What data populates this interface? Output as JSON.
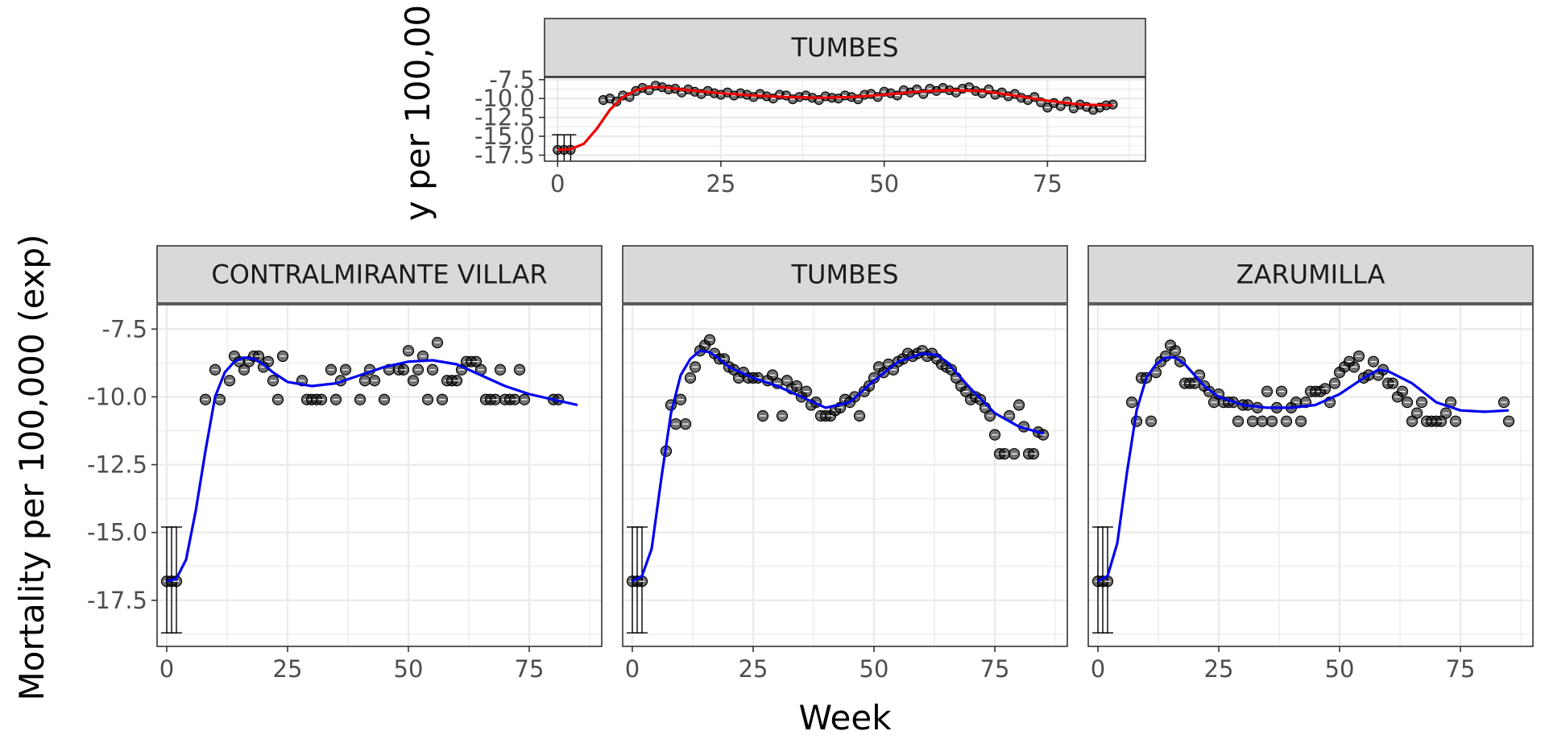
{
  "colors": {
    "bottom_line": "#0000ee",
    "top_line": "#ee0000",
    "points": "#000000",
    "strip_fill": "#d9d9d9"
  },
  "labels": {
    "x_axis_title": "Week",
    "y_axis_title": "Mortality per 100,000 (exp)",
    "top_y_axis_title_fragment": "y per 100,00"
  },
  "chart_data": [
    {
      "type": "scatter",
      "panel": "top",
      "strip": "TUMBES",
      "line_color": "red",
      "xlim": [
        -2,
        90
      ],
      "ylim": [
        -18.3,
        -7.2
      ],
      "x_ticks": [
        0,
        25,
        50,
        75
      ],
      "x_tick_labels": [
        "0",
        "25",
        "50",
        "75"
      ],
      "y_ticks": [
        -7.5,
        -10,
        -12.5,
        -15,
        -17.5
      ],
      "y_tick_labels": [
        "-7.5",
        "-10.0",
        "-12.5",
        "-15.0",
        "-17.5"
      ],
      "points": {
        "x": [
          0,
          1,
          2,
          7,
          8,
          9,
          10,
          11,
          12,
          13,
          14,
          15,
          16,
          17,
          18,
          19,
          20,
          21,
          22,
          23,
          24,
          25,
          26,
          27,
          28,
          29,
          30,
          31,
          32,
          33,
          34,
          35,
          36,
          37,
          38,
          39,
          40,
          41,
          42,
          43,
          44,
          45,
          46,
          47,
          48,
          49,
          50,
          51,
          52,
          53,
          54,
          55,
          56,
          57,
          58,
          59,
          60,
          61,
          62,
          63,
          64,
          65,
          66,
          67,
          68,
          69,
          70,
          71,
          72,
          73,
          74,
          75,
          76,
          77,
          78,
          79,
          80,
          81,
          82,
          83,
          84,
          85
        ],
        "y": [
          -16.8,
          -16.8,
          -16.8,
          -10.2,
          -10.0,
          -10.4,
          -9.6,
          -9.8,
          -9.0,
          -8.6,
          -8.9,
          -8.3,
          -8.5,
          -8.8,
          -8.7,
          -9.2,
          -8.8,
          -9.1,
          -9.4,
          -9.0,
          -9.3,
          -9.5,
          -9.2,
          -9.6,
          -9.3,
          -9.5,
          -9.8,
          -9.4,
          -9.7,
          -10.0,
          -9.5,
          -9.6,
          -10.1,
          -9.8,
          -9.6,
          -9.9,
          -10.2,
          -9.7,
          -9.9,
          -10.0,
          -9.6,
          -9.8,
          -10.1,
          -9.5,
          -9.4,
          -9.8,
          -9.1,
          -9.3,
          -9.6,
          -8.9,
          -9.2,
          -8.8,
          -9.4,
          -8.7,
          -9.0,
          -8.6,
          -8.9,
          -9.2,
          -8.7,
          -8.5,
          -9.0,
          -9.3,
          -8.8,
          -9.5,
          -9.2,
          -9.7,
          -9.4,
          -9.9,
          -10.2,
          -9.8,
          -10.5,
          -11.2,
          -10.6,
          -11.0,
          -10.4,
          -11.3,
          -10.8,
          -11.1,
          -11.5,
          -11.2,
          -10.9,
          -10.8
        ]
      },
      "error_bars": [
        {
          "x": 0,
          "low": -18.7,
          "high": -14.8
        },
        {
          "x": 1,
          "low": -18.7,
          "high": -14.8
        },
        {
          "x": 2,
          "low": -18.7,
          "high": -14.8
        }
      ],
      "smooth": {
        "x": [
          0,
          2,
          4,
          6,
          8,
          10,
          12,
          14,
          16,
          18,
          20,
          25,
          30,
          35,
          40,
          45,
          50,
          55,
          60,
          65,
          70,
          75,
          80,
          85
        ],
        "y": [
          -16.8,
          -16.7,
          -16.0,
          -14.0,
          -11.5,
          -9.8,
          -8.9,
          -8.5,
          -8.5,
          -8.7,
          -8.9,
          -9.3,
          -9.6,
          -9.8,
          -9.9,
          -9.8,
          -9.5,
          -9.1,
          -8.9,
          -9.0,
          -9.6,
          -10.3,
          -10.8,
          -10.9
        ]
      }
    },
    {
      "type": "scatter",
      "panel": "bottom-left",
      "strip": "CONTRALMIRANTE VILLAR",
      "line_color": "blue",
      "xlim": [
        -2,
        90
      ],
      "ylim": [
        -19.2,
        -6.6
      ],
      "x_ticks": [
        0,
        25,
        50,
        75
      ],
      "x_tick_labels": [
        "0",
        "25",
        "50",
        "75"
      ],
      "y_ticks": [
        -7.5,
        -10,
        -12.5,
        -15,
        -17.5
      ],
      "y_tick_labels": [
        "-7.5",
        "-10.0",
        "-12.5",
        "-15.0",
        "-17.5"
      ],
      "points": {
        "x": [
          0,
          1,
          2,
          8,
          10,
          11,
          13,
          14,
          15,
          16,
          17,
          18,
          19,
          20,
          21,
          22,
          23,
          24,
          28,
          29,
          30,
          31,
          32,
          34,
          35,
          36,
          37,
          40,
          41,
          42,
          43,
          45,
          46,
          48,
          49,
          50,
          51,
          52,
          53,
          54,
          55,
          56,
          57,
          58,
          59,
          60,
          61,
          62,
          63,
          64,
          65,
          66,
          67,
          68,
          69,
          70,
          71,
          72,
          73,
          74,
          80,
          81
        ],
        "y": [
          -16.8,
          -16.8,
          -16.8,
          -10.1,
          -9.0,
          -10.1,
          -9.4,
          -8.5,
          -8.7,
          -9.0,
          -8.7,
          -8.5,
          -8.5,
          -8.9,
          -8.7,
          -9.4,
          -10.1,
          -8.5,
          -9.4,
          -10.1,
          -10.1,
          -10.1,
          -10.1,
          -9.0,
          -10.1,
          -9.4,
          -9.0,
          -10.1,
          -9.4,
          -9.0,
          -9.4,
          -10.1,
          -9.0,
          -9.0,
          -9.0,
          -8.3,
          -9.4,
          -9.0,
          -8.5,
          -10.1,
          -9.0,
          -8.0,
          -10.1,
          -9.4,
          -9.4,
          -9.4,
          -9.0,
          -8.7,
          -8.7,
          -8.7,
          -9.0,
          -10.1,
          -10.1,
          -10.1,
          -9.0,
          -10.1,
          -10.1,
          -10.1,
          -9.0,
          -10.1,
          -10.1,
          -10.1
        ]
      },
      "error_bars": [
        {
          "x": 0,
          "low": -18.7,
          "high": -14.8
        },
        {
          "x": 1,
          "low": -18.7,
          "high": -14.8
        },
        {
          "x": 2,
          "low": -18.7,
          "high": -14.8
        }
      ],
      "smooth": {
        "x": [
          0,
          2,
          4,
          6,
          8,
          10,
          12,
          14,
          16,
          18,
          20,
          22,
          25,
          30,
          35,
          40,
          45,
          50,
          55,
          60,
          65,
          70,
          75,
          80,
          85
        ],
        "y": [
          -16.8,
          -16.7,
          -16.0,
          -14.2,
          -12.0,
          -10.0,
          -9.1,
          -8.7,
          -8.55,
          -8.6,
          -8.8,
          -9.1,
          -9.45,
          -9.6,
          -9.5,
          -9.2,
          -8.9,
          -8.7,
          -8.65,
          -8.8,
          -9.2,
          -9.6,
          -9.9,
          -10.1,
          -10.3
        ]
      }
    },
    {
      "type": "scatter",
      "panel": "bottom-middle",
      "strip": "TUMBES",
      "line_color": "blue",
      "xlim": [
        -2,
        90
      ],
      "ylim": [
        -19.2,
        -6.6
      ],
      "x_ticks": [
        0,
        25,
        50,
        75
      ],
      "x_tick_labels": [
        "0",
        "25",
        "50",
        "75"
      ],
      "y_ticks": [
        -7.5,
        -10,
        -12.5,
        -15,
        -17.5
      ],
      "y_tick_labels": [
        "-7.5",
        "-10.0",
        "-12.5",
        "-15.0",
        "-17.5"
      ],
      "points": {
        "x": [
          0,
          1,
          2,
          7,
          8,
          9,
          10,
          11,
          12,
          13,
          14,
          15,
          16,
          17,
          18,
          19,
          20,
          21,
          22,
          23,
          24,
          25,
          26,
          27,
          28,
          29,
          30,
          31,
          32,
          33,
          34,
          35,
          36,
          37,
          38,
          39,
          40,
          41,
          42,
          43,
          44,
          45,
          46,
          47,
          48,
          49,
          50,
          51,
          52,
          53,
          54,
          55,
          56,
          57,
          58,
          59,
          60,
          61,
          62,
          63,
          64,
          65,
          66,
          67,
          68,
          69,
          70,
          71,
          72,
          73,
          74,
          75,
          76,
          77,
          78,
          79,
          80,
          81,
          82,
          83,
          84,
          85
        ],
        "y": [
          -16.8,
          -16.8,
          -16.8,
          -12.0,
          -10.3,
          -11.0,
          -10.1,
          -11.0,
          -9.3,
          -8.9,
          -8.3,
          -8.1,
          -7.9,
          -8.4,
          -8.6,
          -8.6,
          -8.9,
          -9.0,
          -9.3,
          -9.1,
          -9.3,
          -9.3,
          -9.3,
          -10.7,
          -9.4,
          -9.2,
          -9.5,
          -10.7,
          -9.4,
          -9.7,
          -9.6,
          -10.0,
          -9.8,
          -10.3,
          -10.2,
          -10.7,
          -10.7,
          -10.7,
          -10.5,
          -10.4,
          -10.1,
          -10.2,
          -10.0,
          -10.7,
          -9.8,
          -9.6,
          -9.3,
          -8.9,
          -9.1,
          -8.8,
          -9.0,
          -8.7,
          -8.6,
          -8.4,
          -8.5,
          -8.4,
          -8.3,
          -8.5,
          -8.4,
          -8.6,
          -8.8,
          -8.9,
          -9.0,
          -9.3,
          -9.6,
          -9.8,
          -10.1,
          -10.0,
          -10.1,
          -10.4,
          -10.7,
          -11.4,
          -12.1,
          -12.1,
          -10.7,
          -12.1,
          -10.3,
          -11.1,
          -12.1,
          -12.1,
          -11.3,
          -11.4
        ]
      },
      "error_bars": [
        {
          "x": 0,
          "low": -18.7,
          "high": -14.8
        },
        {
          "x": 1,
          "low": -18.7,
          "high": -14.8
        },
        {
          "x": 2,
          "low": -18.7,
          "high": -14.8
        }
      ],
      "smooth": {
        "x": [
          0,
          2,
          4,
          6,
          8,
          10,
          12,
          14,
          16,
          18,
          20,
          25,
          30,
          35,
          40,
          45,
          50,
          55,
          60,
          63,
          65,
          70,
          75,
          80,
          85
        ],
        "y": [
          -16.8,
          -16.6,
          -15.6,
          -13.0,
          -10.6,
          -9.2,
          -8.6,
          -8.3,
          -8.35,
          -8.6,
          -8.9,
          -9.3,
          -9.6,
          -10.0,
          -10.4,
          -10.2,
          -9.4,
          -8.7,
          -8.4,
          -8.45,
          -8.7,
          -9.7,
          -10.6,
          -11.1,
          -11.35
        ]
      }
    },
    {
      "type": "scatter",
      "panel": "bottom-right",
      "strip": "ZARUMILLA",
      "line_color": "blue",
      "xlim": [
        -2,
        90
      ],
      "ylim": [
        -19.2,
        -6.6
      ],
      "x_ticks": [
        0,
        25,
        50,
        75
      ],
      "x_tick_labels": [
        "0",
        "25",
        "50",
        "75"
      ],
      "y_ticks": [
        -7.5,
        -10,
        -12.5,
        -15,
        -17.5
      ],
      "y_tick_labels": [
        "-7.5",
        "-10.0",
        "-12.5",
        "-15.0",
        "-17.5"
      ],
      "points": {
        "x": [
          0,
          1,
          2,
          7,
          8,
          9,
          10,
          11,
          12,
          13,
          14,
          15,
          16,
          17,
          18,
          19,
          20,
          21,
          22,
          23,
          24,
          25,
          26,
          27,
          28,
          29,
          30,
          31,
          32,
          33,
          34,
          35,
          36,
          37,
          38,
          39,
          40,
          41,
          42,
          43,
          44,
          45,
          46,
          47,
          48,
          49,
          50,
          51,
          52,
          53,
          54,
          55,
          56,
          57,
          58,
          59,
          60,
          61,
          62,
          63,
          64,
          65,
          66,
          67,
          68,
          69,
          70,
          71,
          72,
          73,
          74,
          84,
          85
        ],
        "y": [
          -16.8,
          -16.8,
          -16.8,
          -10.2,
          -10.9,
          -9.3,
          -9.3,
          -10.9,
          -9.1,
          -8.7,
          -8.5,
          -8.1,
          -8.3,
          -8.7,
          -9.5,
          -9.5,
          -9.5,
          -9.2,
          -9.6,
          -9.8,
          -10.2,
          -9.9,
          -10.2,
          -10.2,
          -10.2,
          -10.9,
          -10.3,
          -10.3,
          -10.9,
          -10.4,
          -10.9,
          -9.8,
          -10.9,
          -10.4,
          -9.8,
          -10.9,
          -10.4,
          -10.2,
          -10.9,
          -10.2,
          -9.8,
          -9.8,
          -9.8,
          -9.7,
          -10.2,
          -9.5,
          -9.1,
          -8.9,
          -8.7,
          -8.9,
          -8.5,
          -9.3,
          -9.2,
          -8.7,
          -9.2,
          -9.0,
          -9.5,
          -9.5,
          -10.0,
          -9.8,
          -10.2,
          -10.9,
          -10.6,
          -10.2,
          -10.9,
          -10.9,
          -10.9,
          -10.9,
          -10.6,
          -10.2,
          -10.9,
          -10.2,
          -10.9
        ]
      },
      "error_bars": [
        {
          "x": 0,
          "low": -18.7,
          "high": -14.8
        },
        {
          "x": 1,
          "low": -18.7,
          "high": -14.8
        },
        {
          "x": 2,
          "low": -18.7,
          "high": -14.8
        }
      ],
      "smooth": {
        "x": [
          0,
          2,
          4,
          6,
          8,
          10,
          12,
          14,
          16,
          18,
          20,
          22,
          25,
          30,
          35,
          40,
          45,
          50,
          55,
          58,
          60,
          65,
          70,
          75,
          80,
          85
        ],
        "y": [
          -16.8,
          -16.6,
          -15.4,
          -12.8,
          -10.5,
          -9.3,
          -8.8,
          -8.55,
          -8.55,
          -8.8,
          -9.2,
          -9.6,
          -10.0,
          -10.3,
          -10.4,
          -10.4,
          -10.3,
          -9.9,
          -9.3,
          -9.0,
          -9.05,
          -9.5,
          -10.2,
          -10.5,
          -10.55,
          -10.5
        ]
      }
    }
  ]
}
